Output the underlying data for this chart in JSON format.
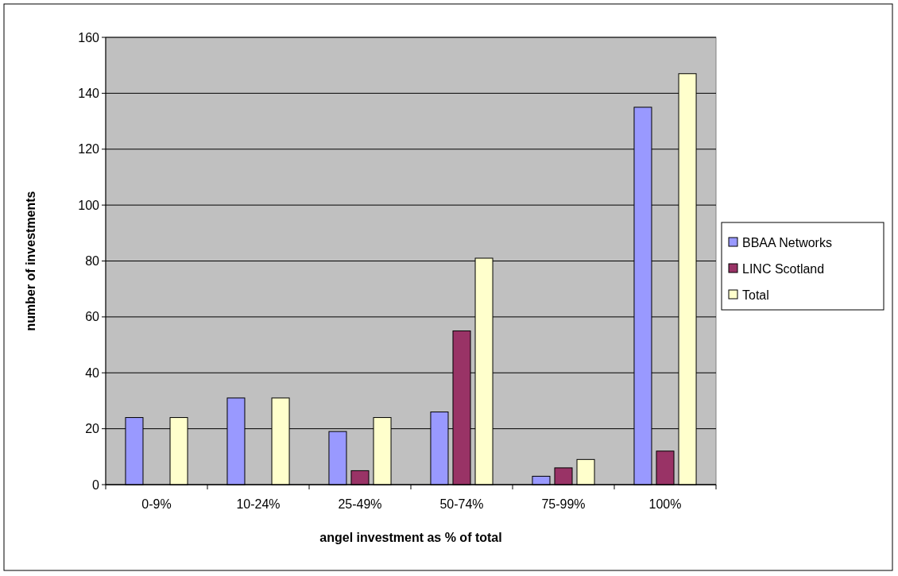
{
  "chart_data": {
    "type": "bar",
    "xlabel": "angel investment as % of total",
    "ylabel": "number of investments",
    "categories": [
      "0-9%",
      "10-24%",
      "25-49%",
      "50-74%",
      "75-99%",
      "100%"
    ],
    "series": [
      {
        "name": "BBAA Networks",
        "color": "#9999ff",
        "values": [
          24,
          31,
          19,
          26,
          3,
          135
        ]
      },
      {
        "name": "LINC Scotland",
        "color": "#993366",
        "values": [
          0,
          0,
          5,
          55,
          6,
          12
        ]
      },
      {
        "name": "Total",
        "color": "#ffffcc",
        "values": [
          24,
          31,
          24,
          81,
          9,
          147
        ]
      }
    ],
    "ylim": [
      0,
      160
    ],
    "yticks": [
      0,
      20,
      40,
      60,
      80,
      100,
      120,
      140,
      160
    ],
    "grid": "y",
    "legend": "right"
  }
}
